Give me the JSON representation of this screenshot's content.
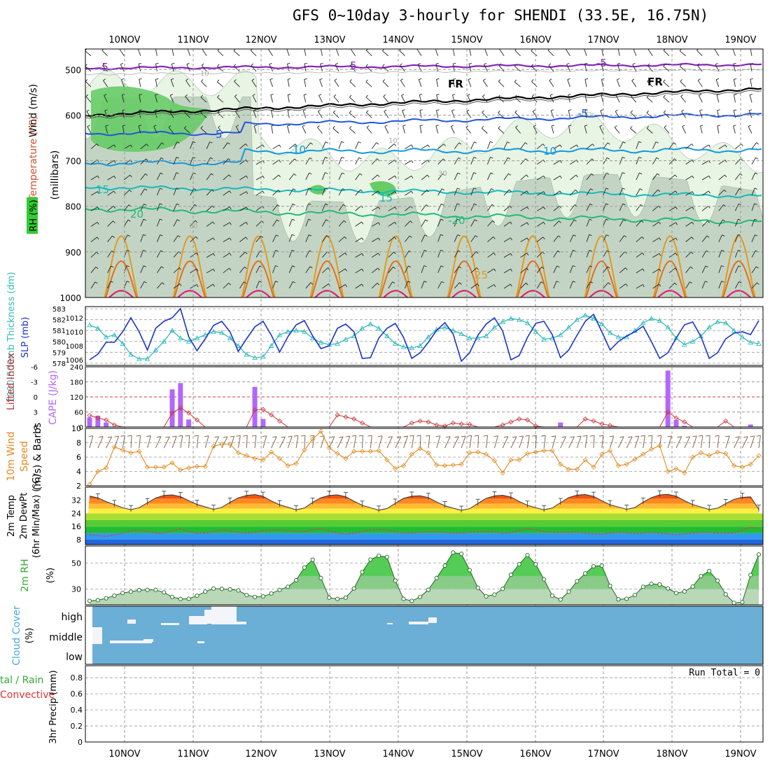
{
  "title": "GFS 0~10day 3-hourly for SHENDI (33.5E, 16.75N)",
  "colors": {
    "rh_green": "#33cc33",
    "slp": "#1a33cc",
    "thickness": "#33bbbb",
    "cape": "#b266ff",
    "lifted": "#cc3333",
    "wind": "#e08a1e",
    "temp_warm": "#dd2200",
    "dewpt": "#996633",
    "rh2m": "#33aa33",
    "cloud": "#6baed6",
    "grid": "#999999"
  },
  "chart_data": [
    {
      "type": "heatmap",
      "panel": "upper_air",
      "ylabel_parts": [
        "RH (%)",
        "Temperature (°C)",
        "Wind (m/s)"
      ],
      "ylabel2": "(millibars)",
      "y_ticks": [
        "500",
        "600",
        "700",
        "800",
        "900",
        "1000"
      ],
      "x_ticks": [
        "10NOV",
        "11NOV",
        "12NOV",
        "13NOV",
        "14NOV",
        "15NOV",
        "16NOV",
        "17NOV",
        "18NOV",
        "19NOV"
      ],
      "annotations": [
        "-5",
        "5",
        "-5",
        "FR",
        "FR",
        "-5",
        "5",
        "10",
        "10",
        "15",
        "15",
        "20",
        "-20",
        "25",
        "10",
        "10",
        "30",
        "50"
      ]
    },
    {
      "type": "line",
      "panel": "thickness_slp",
      "ylabel_left": "1000-500mb Thickness (dm)",
      "ylabel_right": "SLP (mb)",
      "left_ticks": [
        "583",
        "582",
        "581",
        "580",
        "579",
        "578"
      ],
      "right_ticks": [
        "1012",
        "1010",
        "1008",
        "1006"
      ],
      "ylim_thickness": [
        577.8,
        583.2
      ],
      "ylim_slp": [
        1005.2,
        1013.6
      ],
      "series": [
        {
          "name": "SLP",
          "values": [
            1006,
            1006.8,
            1008.5,
            1008.5,
            1010,
            1012,
            1010,
            1007.4,
            1010.5,
            1011.5,
            1012,
            1013.3,
            1009.3,
            1007.3,
            1009,
            1010.9,
            1011.5,
            1010,
            1007.2,
            1009,
            1010.7,
            1011.5,
            1009.5,
            1007.1,
            1009.3,
            1011,
            1011.6,
            1009.4,
            1007.6,
            1008,
            1010.5,
            1011.1,
            1010,
            1006.2,
            1006.3,
            1009.1,
            1010.5,
            1011.2,
            1009.2,
            1006.2,
            1007,
            1008.5,
            1010.2,
            1011.3,
            1009.7,
            1005.8,
            1007,
            1009.5,
            1011.1,
            1012,
            1010.1,
            1006,
            1006.6,
            1009.2,
            1011.2,
            1011.5,
            1009.6,
            1006.3,
            1007.4,
            1009.5,
            1011.5,
            1012.5,
            1010,
            1007.4,
            1008.6,
            1009.4,
            1010,
            1010.8,
            1008.6,
            1006.2,
            1007,
            1009.1,
            1011,
            1011.4,
            1009.3,
            1006.2,
            1007,
            1009,
            1009.8,
            1010,
            1009.6,
            1011.6
          ]
        },
        {
          "name": "Thickness",
          "values": [
            581.5,
            581.2,
            580.4,
            580.6,
            579.8,
            578.8,
            578.4,
            578.4,
            579.2,
            580,
            581,
            580.3,
            580,
            580.3,
            580.6,
            580.9,
            580.8,
            580.3,
            579.6,
            578.8,
            578.5,
            578.6,
            579.6,
            580.6,
            580.9,
            581,
            580.9,
            580.3,
            579.9,
            579.7,
            579.8,
            580.2,
            580.5,
            581.2,
            581.6,
            581.2,
            580.5,
            579.8,
            579.5,
            579.4,
            579.6,
            580.4,
            581.1,
            581.3,
            581,
            580.7,
            580.3,
            580.3,
            580.5,
            581.3,
            581.8,
            582.1,
            582,
            581.7,
            580.9,
            580.2,
            580.3,
            580.6,
            581.3,
            582,
            582.4,
            582.1,
            581.6,
            580.8,
            580.4,
            580.4,
            581,
            581.7,
            582.1,
            581.9,
            581.3,
            580.3,
            579.7,
            580,
            580.5,
            581.3,
            581.8,
            581.7,
            581,
            580.4,
            579.9,
            579.8
          ]
        }
      ]
    },
    {
      "type": "bar",
      "panel": "cape_li",
      "ylabel_left": "Lifted Index",
      "ylabel_right": "CAPE (J/kg)",
      "left_ticks": [
        "-6",
        "-3",
        "0",
        "3",
        "6"
      ],
      "right_ticks": [
        "240",
        "180",
        "120",
        "60",
        "0"
      ],
      "ylim_cape": [
        0,
        240
      ],
      "ylim_li": [
        -6,
        6
      ],
      "series": [
        {
          "name": "CAPE",
          "values": [
            38,
            45,
            18,
            0,
            0,
            0,
            0,
            0,
            0,
            0,
            150,
            175,
            30,
            0,
            0,
            0,
            0,
            0,
            0,
            0,
            160,
            32,
            0,
            0,
            0,
            0,
            0,
            0,
            0,
            0,
            0,
            0,
            0,
            0,
            0,
            0,
            0,
            0,
            0,
            0,
            0,
            0,
            0,
            0,
            0,
            0,
            0,
            0,
            0,
            0,
            0,
            0,
            0,
            0,
            0,
            0,
            0,
            18,
            0,
            0,
            0,
            0,
            0,
            0,
            0,
            0,
            0,
            0,
            0,
            0,
            225,
            28,
            5,
            0,
            0,
            0,
            0,
            0,
            0,
            0,
            10,
            0
          ]
        },
        {
          "name": "Lifted Index",
          "values": [
            3.7,
            4.2,
            4.6,
            5.6,
            6,
            6,
            6,
            6,
            6,
            6,
            3.2,
            2.2,
            3.2,
            4.6,
            6,
            6,
            6,
            6,
            6,
            6,
            2.6,
            2.5,
            3.6,
            4.8,
            6,
            6,
            6,
            6,
            6,
            6,
            3.6,
            4,
            4.4,
            5.2,
            6,
            6,
            6,
            6,
            6,
            5.2,
            4.8,
            5,
            5.6,
            5.8,
            5.2,
            5.4,
            5.5,
            6,
            6,
            6,
            5.6,
            5,
            4.4,
            4.6,
            5.8,
            6,
            6,
            6,
            6,
            6,
            4.4,
            4.8,
            5.4,
            5.7,
            6,
            6,
            6,
            6,
            6,
            6,
            3,
            4.2,
            5,
            6,
            6,
            6,
            6,
            4.8,
            6,
            6,
            6,
            6
          ]
        }
      ]
    },
    {
      "type": "line",
      "panel": "wind10m",
      "ylabel": [
        "10m Wind",
        "Speed",
        "(m/s) & Barbs"
      ],
      "y_ticks": [
        "10",
        "8",
        "6",
        "4",
        "2"
      ],
      "ylim": [
        2,
        10
      ],
      "series": [
        {
          "name": "Wind Speed",
          "values": [
            2.2,
            4,
            4.5,
            7.4,
            7,
            6.6,
            6.8,
            4.6,
            4.6,
            4.6,
            5.2,
            4.2,
            4.5,
            4.7,
            4.7,
            7.5,
            7.8,
            7.8,
            6.6,
            6.2,
            5.8,
            5.6,
            6.7,
            5.8,
            4.8,
            5.1,
            7,
            8.5,
            9.6,
            7.3,
            6.5,
            5.8,
            6.8,
            6.8,
            6.8,
            6.9,
            5.6,
            4.4,
            4.8,
            6.4,
            7.2,
            6.6,
            4.9,
            4.8,
            4.9,
            5,
            6.6,
            6.7,
            6.4,
            5.5,
            3.8,
            5.6,
            5.6,
            6.5,
            6.7,
            6.9,
            6.9,
            5,
            4.3,
            4.3,
            5.6,
            4.6,
            6.4,
            6.9,
            4.8,
            5,
            5.7,
            6.4,
            7.1,
            7.6,
            4,
            4.4,
            3.8,
            6,
            6.6,
            6.2,
            6.7,
            6.5,
            4.8,
            4.6,
            5,
            6.2
          ]
        }
      ]
    },
    {
      "type": "area",
      "panel": "temp2m",
      "ylabel": [
        "2m Temp",
        "2m DewPt",
        "(6hr Min/Max) (°C)"
      ],
      "y_ticks": [
        "32",
        "24",
        "16",
        "8"
      ],
      "ylim": [
        5,
        40
      ],
      "series": [
        {
          "name": "2m Temp",
          "values": [
            34.6,
            33.5,
            31.2,
            29.4,
            27.5,
            26.3,
            27.5,
            30.5,
            33.4,
            35,
            35.3,
            34.3,
            31.8,
            29.5,
            28,
            26.5,
            27.7,
            30.8,
            33.5,
            35,
            35.5,
            34.4,
            31.6,
            29.3,
            27.8,
            26.2,
            27.3,
            30.8,
            33.6,
            35,
            35.3,
            34.2,
            31.4,
            29,
            27.5,
            26,
            27,
            30.2,
            33.2,
            34.5,
            34.8,
            33.7,
            31,
            28.7,
            27.2,
            25.9,
            26.9,
            30.1,
            33.2,
            34.7,
            35.1,
            34,
            31.3,
            29,
            27.5,
            26.2,
            27.3,
            30.6,
            33.7,
            35.2,
            35.5,
            34.4,
            31.7,
            29.3,
            27.9,
            26.5,
            27.6,
            30.9,
            33.7,
            35.3,
            35.6,
            34.5,
            31.8,
            29.4,
            27.9,
            26.4,
            27.2,
            30,
            32.6,
            33.8,
            34.1,
            26.5
          ]
        },
        {
          "name": "2m DewPt",
          "values": [
            11,
            10.5,
            10,
            11,
            12,
            13.5,
            14,
            13,
            12,
            12,
            13.5,
            14.5,
            13,
            12,
            12,
            13,
            14,
            13.5,
            12.5,
            12,
            12.5,
            13.5,
            14,
            14,
            13.5,
            13,
            13,
            14,
            14.5,
            13.5,
            12,
            11.5,
            12,
            13,
            14,
            14.2,
            14,
            13,
            12,
            12,
            12.5,
            13,
            13,
            12.5,
            12,
            12,
            12.5,
            13,
            13,
            12.8,
            12,
            12.2,
            13.5,
            14.5,
            14,
            13,
            12.5,
            12.5,
            12.5,
            13,
            12,
            11.5,
            11.5,
            12,
            12.5,
            12.2,
            11.8,
            12,
            12.5,
            12,
            11.5,
            11,
            11.5,
            12,
            12.5,
            12.5,
            12,
            12,
            12,
            14,
            15.5,
            15
          ]
        }
      ]
    },
    {
      "type": "area",
      "panel": "rh2m",
      "ylabel": [
        "2m RH",
        "(%)"
      ],
      "y_ticks": [
        "50",
        "30"
      ],
      "ylim": [
        18,
        63
      ],
      "series": [
        {
          "name": "2m RH",
          "values": [
            21,
            21.5,
            23,
            25,
            27,
            28,
            29.2,
            29.4,
            29.4,
            27.5,
            24,
            22.5,
            22.6,
            25,
            28,
            30.4,
            30.2,
            29.8,
            29,
            25.5,
            24,
            24.4,
            26.7,
            29.4,
            31.8,
            36.8,
            46.5,
            52.5,
            38.5,
            23.5,
            22.5,
            23.5,
            30.5,
            43,
            52.6,
            55.5,
            54.6,
            36.5,
            22.5,
            21,
            24,
            29.5,
            38.5,
            48,
            58,
            57,
            44.5,
            31,
            24.5,
            25.8,
            30.2,
            41,
            49,
            56,
            49,
            37.5,
            25,
            22,
            28,
            36,
            42,
            47.5,
            48,
            32.5,
            22.2,
            22.6,
            25.5,
            31.8,
            34,
            33.6,
            30.5,
            27,
            28.2,
            32,
            40,
            43.8,
            36.5,
            26,
            19.5,
            20,
            40.8,
            56.5
          ]
        }
      ]
    },
    {
      "type": "heatmap",
      "panel": "cloud",
      "ylabel": [
        "Cloud Cover",
        "(%)"
      ],
      "y_ticks": [
        "high",
        "middle",
        "low"
      ],
      "series": [
        {
          "name": "high",
          "values": [
            0,
            0,
            0,
            0,
            0,
            0,
            0,
            0,
            0,
            0,
            0,
            0,
            0,
            0,
            0,
            0,
            0,
            0,
            0,
            0,
            0,
            0,
            0,
            0,
            0,
            0,
            0,
            0,
            0,
            0,
            0,
            0,
            0,
            0,
            0,
            0,
            0,
            0,
            0,
            0,
            0,
            0,
            0,
            0,
            0,
            0,
            0,
            0,
            0,
            0,
            0,
            0,
            0,
            0,
            0,
            0,
            0,
            0,
            0,
            0,
            0,
            0,
            0,
            0,
            0,
            0,
            0,
            0,
            0,
            0,
            0,
            0,
            0,
            0,
            0,
            0,
            0,
            0,
            0,
            0,
            0,
            0
          ]
        },
        {
          "name": "middle",
          "values": [
            0,
            0,
            0,
            0,
            0,
            0,
            0,
            0,
            0,
            0,
            0,
            0,
            0,
            0,
            0,
            0,
            0,
            0,
            0,
            0,
            0,
            0,
            0,
            0,
            0,
            0,
            0,
            0,
            0,
            0,
            0,
            0,
            0,
            0,
            0,
            0,
            0,
            0,
            0,
            0,
            0,
            0,
            0,
            0,
            0,
            0,
            0,
            0,
            0,
            0,
            0,
            0,
            0,
            0,
            0,
            0,
            0,
            0,
            0,
            0,
            0,
            0,
            0,
            0,
            0,
            0,
            0,
            0,
            0,
            0,
            0,
            0,
            0,
            0,
            0,
            0,
            0,
            0,
            0,
            0,
            0,
            0
          ]
        }
      ]
    },
    {
      "type": "bar",
      "panel": "precip",
      "ylabel_left_parts": [
        "tal / Rain",
        "Convective"
      ],
      "ylabel": "3hr Precip (mm)",
      "y_ticks": [
        "0.8",
        "0.6",
        "0.4",
        "0.2",
        "0"
      ],
      "ylim": [
        0,
        0.95
      ],
      "run_total": "Run Total = 0",
      "values": []
    }
  ]
}
